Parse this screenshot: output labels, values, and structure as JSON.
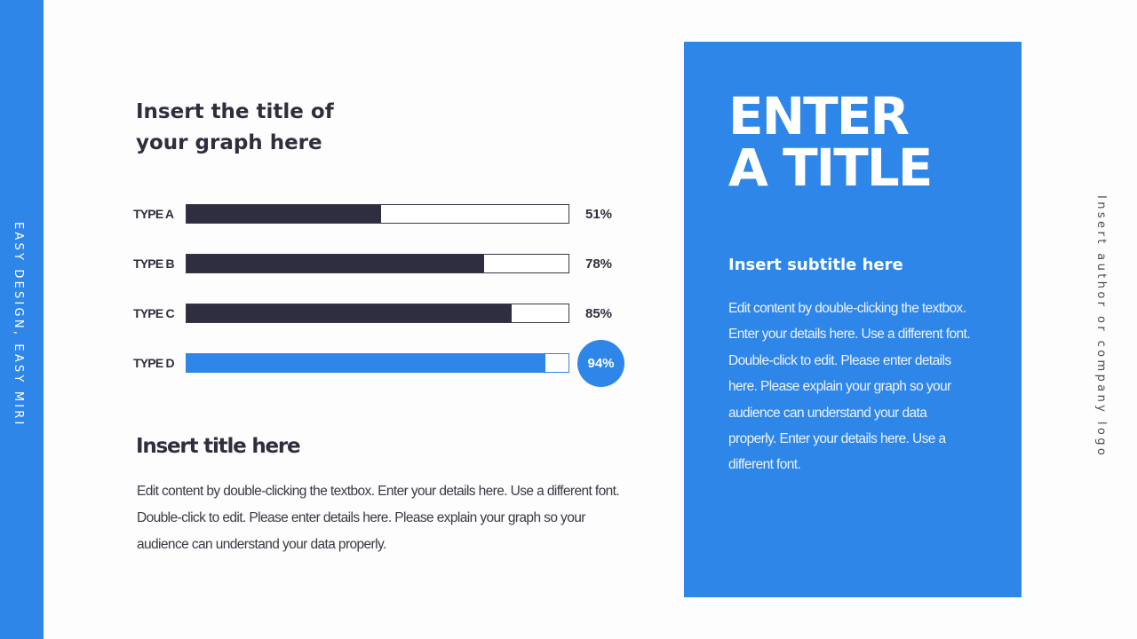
{
  "side_strip": {
    "text": "EASY DESIGN, EASY MIRI",
    "color": "#2e86e8"
  },
  "graph": {
    "title": "Insert the title of your graph here"
  },
  "chart_data": {
    "type": "bar",
    "orientation": "horizontal",
    "title": "Insert the title of your graph here",
    "categories": [
      "TYPE A",
      "TYPE B",
      "TYPE C",
      "TYPE D"
    ],
    "values": [
      51,
      78,
      85,
      94
    ],
    "value_labels": [
      "51%",
      "78%",
      "85%",
      "94%"
    ],
    "xlabel": "",
    "ylabel": "",
    "xlim": [
      0,
      100
    ],
    "grid": false,
    "highlight": "TYPE D",
    "colors": {
      "default": "#2f2e41",
      "highlight": "#2e86e8",
      "track": "#ffffff"
    }
  },
  "section": {
    "title": "Insert title here",
    "body": "Edit content by double-clicking the textbox. Enter your details here. Use a different font. Double-click to edit. Please enter details here. Please explain your graph so your audience can understand your data properly."
  },
  "panel": {
    "title_line1": "ENTER",
    "title_line2": "A TITLE",
    "subtitle": "Insert subtitle here",
    "body": "Edit content by double-clicking the textbox. Enter your details here. Use a different font. Double-click to edit. Please enter details here. Please explain your graph so your audience can understand your data properly. Enter your details here. Use a different font.",
    "color": "#2e86e8"
  },
  "author": {
    "text": "Insert author or company logo"
  }
}
